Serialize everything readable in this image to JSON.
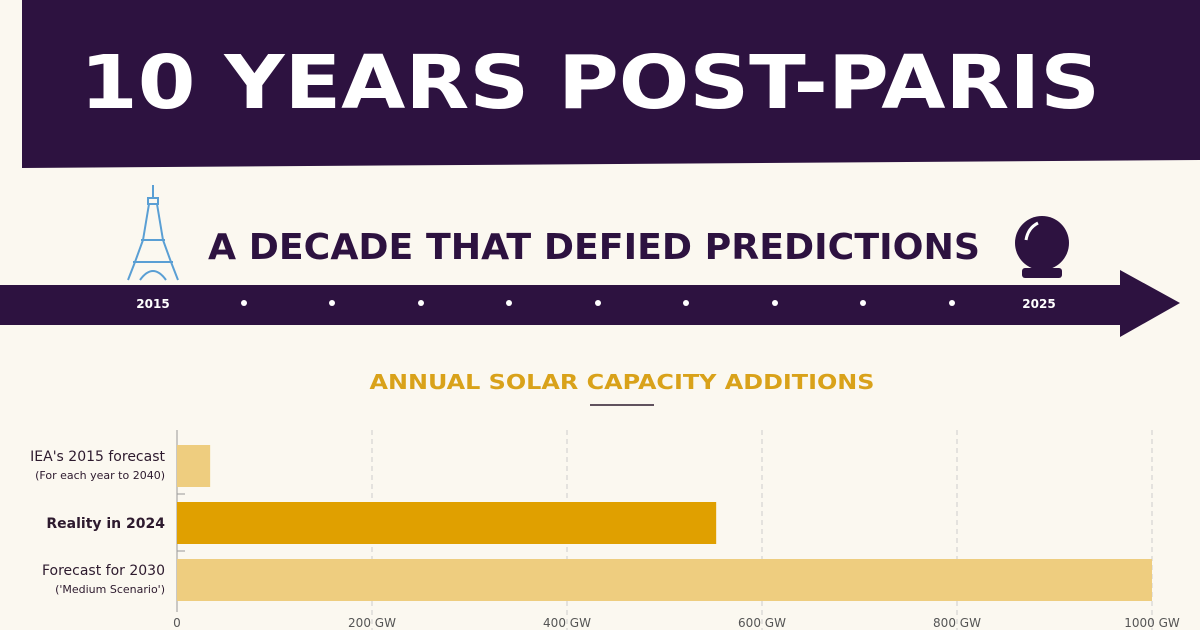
{
  "header": {
    "title": "10 YEARS POST-PARIS",
    "subtitle": "A DECADE THAT DEFIED PREDICTIONS"
  },
  "timeline": {
    "start": "2015",
    "end": "2025"
  },
  "chart_data": {
    "type": "barh",
    "title": "ANNUAL SOLAR CAPACITY ADDITIONS",
    "categories": [
      "IEA's 2015 forecast",
      "Reality in 2024",
      "Forecast for 2030"
    ],
    "category_notes": [
      "(For each year to 2040)",
      null,
      "('Medium Scenario')"
    ],
    "values": [
      34,
      553,
      1000
    ],
    "colors": [
      "#eecd7f",
      "#e0a000",
      "#eecd7f"
    ],
    "xlim": [
      0,
      1000
    ],
    "xticks": [
      0,
      {
        "value": 200,
        "label": "200 GW"
      },
      {
        "value": 400,
        "label": "400 GW"
      },
      {
        "value": 600,
        "label": "600 GW"
      },
      {
        "value": 800,
        "label": "800 GW"
      },
      {
        "value": 1000,
        "label": "1000 GW"
      }
    ],
    "grid": true
  }
}
